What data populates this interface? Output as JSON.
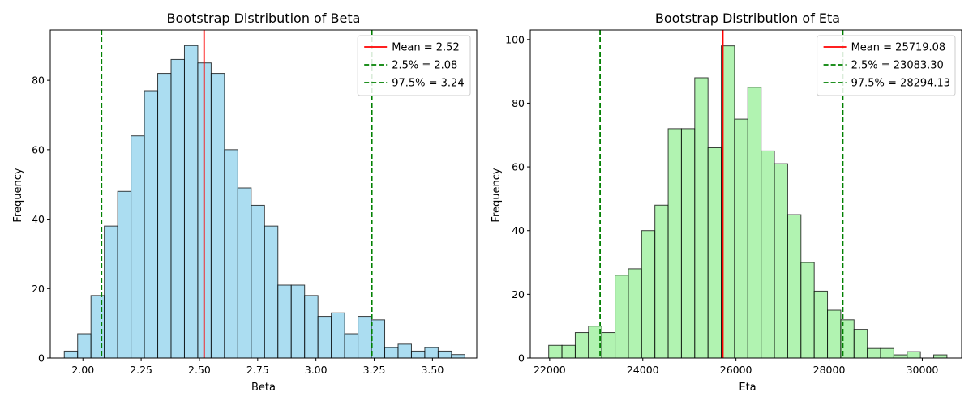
{
  "chart_data": [
    {
      "type": "bar",
      "title": "Bootstrap Distribution of Beta",
      "xlabel": "Beta",
      "ylabel": "Frequency",
      "xlim": [
        1.86,
        3.69
      ],
      "ylim": [
        0,
        94.5
      ],
      "xticks": [
        2.0,
        2.25,
        2.5,
        2.75,
        3.0,
        3.25,
        3.5
      ],
      "xtick_labels": [
        "2.00",
        "2.25",
        "2.50",
        "2.75",
        "3.00",
        "3.25",
        "3.50"
      ],
      "yticks": [
        0,
        20,
        40,
        60,
        80
      ],
      "bar_color": "#87ceeb",
      "bins_start": 1.92,
      "bin_width": 0.0573,
      "values": [
        2,
        7,
        18,
        38,
        48,
        64,
        77,
        82,
        86,
        90,
        85,
        82,
        60,
        49,
        44,
        38,
        21,
        21,
        18,
        12,
        13,
        7,
        12,
        11,
        3,
        4,
        2,
        3,
        2,
        1
      ],
      "lines": [
        {
          "label": "Mean = 2.52",
          "x": 2.52,
          "color": "#ff0000",
          "style": "solid"
        },
        {
          "label": "2.5% = 2.08",
          "x": 2.08,
          "color": "#008000",
          "style": "dashed"
        },
        {
          "label": "97.5% = 3.24",
          "x": 3.24,
          "color": "#008000",
          "style": "dashed"
        }
      ],
      "legend_position": "top-right",
      "grid": false
    },
    {
      "type": "bar",
      "title": "Bootstrap Distribution of Eta",
      "xlabel": "Eta",
      "ylabel": "Frequency",
      "xlim": [
        21585,
        30845
      ],
      "ylim": [
        0,
        103
      ],
      "xticks": [
        22000,
        24000,
        26000,
        28000,
        30000
      ],
      "xtick_labels": [
        "22000",
        "24000",
        "26000",
        "28000",
        "30000"
      ],
      "yticks": [
        0,
        20,
        40,
        60,
        80,
        100
      ],
      "bar_color": "#90ee90",
      "bins_start": 21980,
      "bin_width": 285,
      "values": [
        4,
        4,
        8,
        10,
        8,
        26,
        28,
        40,
        48,
        72,
        72,
        88,
        66,
        98,
        75,
        85,
        65,
        61,
        45,
        30,
        21,
        15,
        12,
        9,
        3,
        3,
        1,
        2,
        0,
        1
      ],
      "lines": [
        {
          "label": "Mean = 25719.08",
          "x": 25719.08,
          "color": "#ff0000",
          "style": "solid"
        },
        {
          "label": "2.5% = 23083.30",
          "x": 23083.3,
          "color": "#008000",
          "style": "dashed"
        },
        {
          "label": "97.5% = 28294.13",
          "x": 28294.13,
          "color": "#008000",
          "style": "dashed"
        }
      ],
      "legend_position": "top-right",
      "grid": false
    }
  ]
}
